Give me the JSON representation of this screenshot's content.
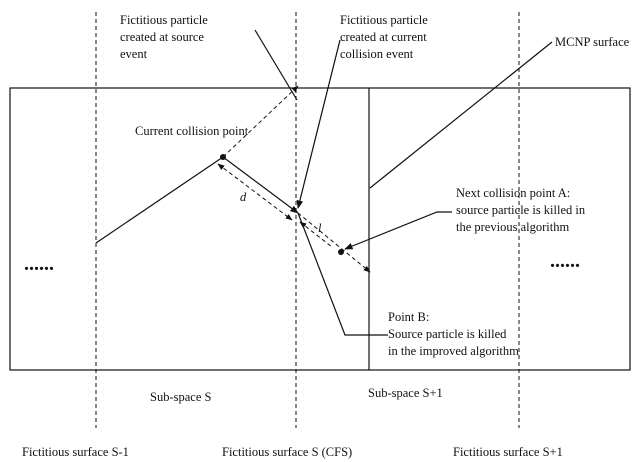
{
  "callouts": {
    "source_event": [
      "Fictitious particle",
      "created at source",
      "event"
    ],
    "collision_event": [
      "Fictitious particle",
      "created at current",
      "collision event"
    ],
    "mcnp": "MCNP surface",
    "current_point": "Current collision point",
    "next_point": [
      "Next collision point A:",
      "source particle is killed in",
      "the previous algorithm"
    ],
    "point_b": [
      "Point B:",
      "Source particle is killed",
      "in the improved algorithm"
    ],
    "d": "d",
    "l": "l",
    "ellipsis_left": "......",
    "ellipsis_right": "......"
  },
  "subspaces": [
    "Sub-space S",
    "Sub-space S+1"
  ],
  "surfaces": [
    "Fictitious surface S-1",
    "Fictitious surface S (CFS)",
    "Fictitious surface S+1"
  ]
}
